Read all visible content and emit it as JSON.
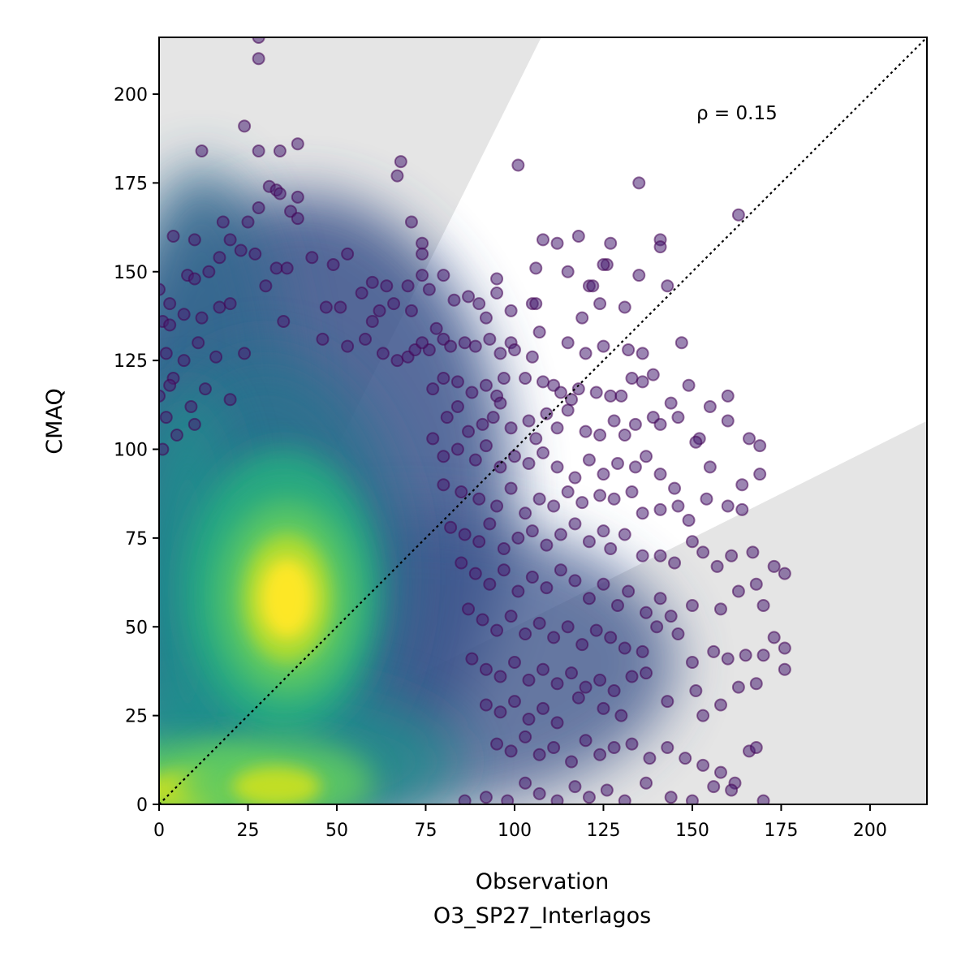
{
  "chart_data": {
    "type": "scatter",
    "title": "",
    "xlabel": "Observation",
    "xlabel_sub": "O3_SP27_Interlagos",
    "ylabel": "CMAQ",
    "xlim": [
      0,
      216
    ],
    "ylim": [
      0,
      216
    ],
    "xticks": [
      0,
      25,
      50,
      75,
      100,
      125,
      150,
      175,
      200
    ],
    "yticks": [
      0,
      25,
      50,
      75,
      100,
      125,
      150,
      175,
      200
    ],
    "annotation": "ρ = 0.15",
    "reference_line": {
      "style": "dotted",
      "from": [
        0,
        0
      ],
      "to": [
        216,
        216
      ]
    },
    "shaded_regions": [
      {
        "color": "#e5e5e5",
        "polygon": [
          [
            0,
            0
          ],
          [
            0,
            216
          ],
          [
            107.5,
            216
          ],
          [
            0,
            0
          ]
        ]
      },
      {
        "color": "#e5e5e5",
        "polygon": [
          [
            0,
            0
          ],
          [
            216,
            0
          ],
          [
            216,
            108
          ],
          [
            0,
            0
          ]
        ]
      }
    ],
    "colormap": "viridis",
    "density_cores": [
      {
        "x": 36,
        "y": 58,
        "level": "peak"
      },
      {
        "x": 8,
        "y": 2,
        "level": "high"
      },
      {
        "x": 33,
        "y": 3,
        "level": "high"
      }
    ],
    "points": [
      [
        28,
        216
      ],
      [
        28,
        210
      ],
      [
        24,
        191
      ],
      [
        12,
        184
      ],
      [
        28,
        184
      ],
      [
        34,
        184
      ],
      [
        39,
        186
      ],
      [
        68,
        181
      ],
      [
        67,
        177
      ],
      [
        101,
        180
      ],
      [
        31,
        174
      ],
      [
        33,
        173
      ],
      [
        34,
        172
      ],
      [
        39,
        171
      ],
      [
        37,
        167
      ],
      [
        28,
        168
      ],
      [
        135,
        175
      ],
      [
        18,
        164
      ],
      [
        25,
        164
      ],
      [
        39,
        165
      ],
      [
        71,
        164
      ],
      [
        74,
        158
      ],
      [
        74,
        155
      ],
      [
        4,
        160
      ],
      [
        10,
        159
      ],
      [
        20,
        159
      ],
      [
        23,
        156
      ],
      [
        27,
        155
      ],
      [
        43,
        154
      ],
      [
        53,
        155
      ],
      [
        108,
        159
      ],
      [
        112,
        158
      ],
      [
        118,
        160
      ],
      [
        126,
        152
      ],
      [
        127,
        158
      ],
      [
        141,
        159
      ],
      [
        141,
        157
      ],
      [
        163,
        166
      ],
      [
        74,
        149
      ],
      [
        70,
        146
      ],
      [
        80,
        149
      ],
      [
        95,
        148
      ],
      [
        106,
        151
      ],
      [
        115,
        150
      ],
      [
        121,
        146
      ],
      [
        122,
        146
      ],
      [
        125,
        152
      ],
      [
        135,
        149
      ],
      [
        143,
        146
      ],
      [
        8,
        149
      ],
      [
        10,
        148
      ],
      [
        14,
        150
      ],
      [
        17,
        154
      ],
      [
        33,
        151
      ],
      [
        36,
        151
      ],
      [
        49,
        152
      ],
      [
        60,
        147
      ],
      [
        64,
        146
      ],
      [
        0,
        145
      ],
      [
        3,
        141
      ],
      [
        1,
        136
      ],
      [
        17,
        140
      ],
      [
        20,
        141
      ],
      [
        30,
        146
      ],
      [
        47,
        140
      ],
      [
        57,
        144
      ],
      [
        62,
        139
      ],
      [
        66,
        141
      ],
      [
        71,
        139
      ],
      [
        76,
        145
      ],
      [
        83,
        142
      ],
      [
        87,
        143
      ],
      [
        90,
        141
      ],
      [
        95,
        144
      ],
      [
        99,
        139
      ],
      [
        105,
        141
      ],
      [
        106,
        141
      ],
      [
        119,
        137
      ],
      [
        124,
        141
      ],
      [
        131,
        140
      ],
      [
        3,
        135
      ],
      [
        12,
        137
      ],
      [
        7,
        138
      ],
      [
        35,
        136
      ],
      [
        51,
        140
      ],
      [
        60,
        136
      ],
      [
        78,
        134
      ],
      [
        92,
        137
      ],
      [
        107,
        133
      ],
      [
        76,
        128
      ],
      [
        80,
        131
      ],
      [
        82,
        129
      ],
      [
        86,
        130
      ],
      [
        89,
        129
      ],
      [
        93,
        131
      ],
      [
        96,
        127
      ],
      [
        99,
        130
      ],
      [
        100,
        128
      ],
      [
        105,
        126
      ],
      [
        115,
        130
      ],
      [
        120,
        127
      ],
      [
        125,
        129
      ],
      [
        132,
        128
      ],
      [
        136,
        127
      ],
      [
        147,
        130
      ],
      [
        11,
        130
      ],
      [
        2,
        127
      ],
      [
        4,
        120
      ],
      [
        7,
        125
      ],
      [
        16,
        126
      ],
      [
        24,
        127
      ],
      [
        46,
        131
      ],
      [
        53,
        129
      ],
      [
        58,
        131
      ],
      [
        63,
        127
      ],
      [
        67,
        125
      ],
      [
        70,
        126
      ],
      [
        72,
        128
      ],
      [
        74,
        130
      ],
      [
        0,
        115
      ],
      [
        3,
        118
      ],
      [
        9,
        112
      ],
      [
        13,
        117
      ],
      [
        20,
        114
      ],
      [
        77,
        117
      ],
      [
        80,
        120
      ],
      [
        84,
        119
      ],
      [
        88,
        116
      ],
      [
        92,
        118
      ],
      [
        95,
        115
      ],
      [
        97,
        120
      ],
      [
        103,
        120
      ],
      [
        108,
        119
      ],
      [
        111,
        118
      ],
      [
        113,
        116
      ],
      [
        116,
        114
      ],
      [
        118,
        117
      ],
      [
        123,
        116
      ],
      [
        127,
        115
      ],
      [
        130,
        115
      ],
      [
        133,
        120
      ],
      [
        136,
        119
      ],
      [
        139,
        121
      ],
      [
        149,
        118
      ],
      [
        81,
        109
      ],
      [
        84,
        112
      ],
      [
        87,
        105
      ],
      [
        91,
        107
      ],
      [
        94,
        109
      ],
      [
        96,
        113
      ],
      [
        99,
        106
      ],
      [
        104,
        108
      ],
      [
        106,
        103
      ],
      [
        109,
        110
      ],
      [
        112,
        106
      ],
      [
        115,
        111
      ],
      [
        120,
        105
      ],
      [
        124,
        104
      ],
      [
        128,
        108
      ],
      [
        131,
        104
      ],
      [
        134,
        107
      ],
      [
        139,
        109
      ],
      [
        141,
        107
      ],
      [
        144,
        113
      ],
      [
        146,
        109
      ],
      [
        152,
        103
      ],
      [
        155,
        112
      ],
      [
        160,
        115
      ],
      [
        166,
        103
      ],
      [
        169,
        101
      ],
      [
        2,
        109
      ],
      [
        5,
        104
      ],
      [
        10,
        107
      ],
      [
        1,
        100
      ],
      [
        77,
        103
      ],
      [
        80,
        98
      ],
      [
        84,
        100
      ],
      [
        89,
        97
      ],
      [
        92,
        101
      ],
      [
        96,
        95
      ],
      [
        100,
        98
      ],
      [
        104,
        96
      ],
      [
        108,
        99
      ],
      [
        112,
        95
      ],
      [
        117,
        92
      ],
      [
        121,
        97
      ],
      [
        125,
        93
      ],
      [
        129,
        96
      ],
      [
        134,
        95
      ],
      [
        137,
        98
      ],
      [
        141,
        93
      ],
      [
        145,
        89
      ],
      [
        151,
        102
      ],
      [
        155,
        95
      ],
      [
        160,
        108
      ],
      [
        164,
        90
      ],
      [
        169,
        93
      ],
      [
        80,
        90
      ],
      [
        85,
        88
      ],
      [
        90,
        86
      ],
      [
        95,
        84
      ],
      [
        99,
        89
      ],
      [
        103,
        82
      ],
      [
        107,
        86
      ],
      [
        111,
        84
      ],
      [
        115,
        88
      ],
      [
        119,
        85
      ],
      [
        124,
        87
      ],
      [
        128,
        86
      ],
      [
        133,
        88
      ],
      [
        136,
        82
      ],
      [
        141,
        83
      ],
      [
        146,
        84
      ],
      [
        149,
        80
      ],
      [
        154,
        86
      ],
      [
        160,
        84
      ],
      [
        164,
        83
      ],
      [
        82,
        78
      ],
      [
        86,
        76
      ],
      [
        90,
        74
      ],
      [
        93,
        79
      ],
      [
        97,
        72
      ],
      [
        101,
        75
      ],
      [
        105,
        77
      ],
      [
        109,
        73
      ],
      [
        113,
        76
      ],
      [
        117,
        79
      ],
      [
        121,
        74
      ],
      [
        125,
        77
      ],
      [
        127,
        72
      ],
      [
        131,
        76
      ],
      [
        136,
        70
      ],
      [
        141,
        70
      ],
      [
        145,
        68
      ],
      [
        150,
        74
      ],
      [
        153,
        71
      ],
      [
        157,
        67
      ],
      [
        161,
        70
      ],
      [
        167,
        71
      ],
      [
        173,
        67
      ],
      [
        176,
        65
      ],
      [
        85,
        68
      ],
      [
        89,
        65
      ],
      [
        93,
        62
      ],
      [
        97,
        66
      ],
      [
        101,
        60
      ],
      [
        105,
        64
      ],
      [
        109,
        61
      ],
      [
        113,
        66
      ],
      [
        117,
        63
      ],
      [
        121,
        58
      ],
      [
        125,
        62
      ],
      [
        129,
        56
      ],
      [
        132,
        60
      ],
      [
        137,
        54
      ],
      [
        141,
        58
      ],
      [
        144,
        53
      ],
      [
        150,
        56
      ],
      [
        158,
        55
      ],
      [
        163,
        60
      ],
      [
        168,
        62
      ],
      [
        170,
        56
      ],
      [
        87,
        55
      ],
      [
        91,
        52
      ],
      [
        95,
        49
      ],
      [
        99,
        53
      ],
      [
        103,
        48
      ],
      [
        107,
        51
      ],
      [
        111,
        47
      ],
      [
        115,
        50
      ],
      [
        119,
        45
      ],
      [
        123,
        49
      ],
      [
        127,
        47
      ],
      [
        131,
        44
      ],
      [
        136,
        43
      ],
      [
        140,
        50
      ],
      [
        146,
        48
      ],
      [
        150,
        40
      ],
      [
        156,
        43
      ],
      [
        160,
        41
      ],
      [
        165,
        42
      ],
      [
        170,
        42
      ],
      [
        173,
        47
      ],
      [
        176,
        44
      ],
      [
        88,
        41
      ],
      [
        92,
        38
      ],
      [
        96,
        36
      ],
      [
        100,
        40
      ],
      [
        104,
        35
      ],
      [
        108,
        38
      ],
      [
        112,
        34
      ],
      [
        116,
        37
      ],
      [
        120,
        33
      ],
      [
        124,
        35
      ],
      [
        128,
        32
      ],
      [
        133,
        36
      ],
      [
        137,
        37
      ],
      [
        151,
        32
      ],
      [
        163,
        33
      ],
      [
        168,
        34
      ],
      [
        176,
        38
      ],
      [
        92,
        28
      ],
      [
        96,
        26
      ],
      [
        100,
        29
      ],
      [
        104,
        24
      ],
      [
        108,
        27
      ],
      [
        112,
        23
      ],
      [
        118,
        30
      ],
      [
        125,
        27
      ],
      [
        130,
        25
      ],
      [
        143,
        29
      ],
      [
        153,
        25
      ],
      [
        158,
        28
      ],
      [
        95,
        17
      ],
      [
        99,
        15
      ],
      [
        103,
        19
      ],
      [
        107,
        14
      ],
      [
        111,
        16
      ],
      [
        116,
        12
      ],
      [
        120,
        18
      ],
      [
        124,
        14
      ],
      [
        128,
        16
      ],
      [
        133,
        17
      ],
      [
        138,
        13
      ],
      [
        143,
        16
      ],
      [
        148,
        13
      ],
      [
        153,
        11
      ],
      [
        158,
        9
      ],
      [
        162,
        6
      ],
      [
        166,
        15
      ],
      [
        168,
        16
      ],
      [
        103,
        6
      ],
      [
        107,
        3
      ],
      [
        112,
        1
      ],
      [
        117,
        5
      ],
      [
        121,
        2
      ],
      [
        126,
        4
      ],
      [
        131,
        1
      ],
      [
        137,
        6
      ],
      [
        144,
        2
      ],
      [
        150,
        1
      ],
      [
        156,
        5
      ],
      [
        161,
        4
      ],
      [
        170,
        1
      ],
      [
        86,
        1
      ],
      [
        92,
        2
      ],
      [
        98,
        1
      ]
    ]
  }
}
